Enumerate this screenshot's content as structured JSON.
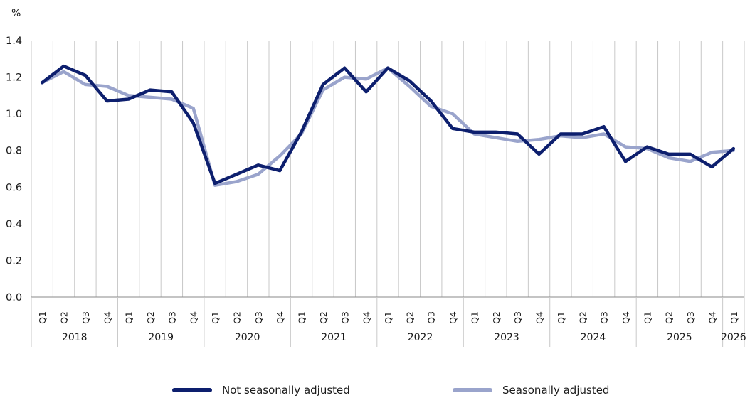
{
  "chart_data": {
    "type": "line",
    "ylabel": "%",
    "ylim": [
      0,
      1.4
    ],
    "yticks": [
      "0.0",
      "0.2",
      "0.4",
      "0.6",
      "0.8",
      "1.0",
      "1.2",
      "1.4"
    ],
    "grid": {
      "vertical": true,
      "horizontal": false
    },
    "legend_position": "bottom",
    "quarters": [
      "Q1",
      "Q2",
      "Q3",
      "Q4",
      "Q1",
      "Q2",
      "Q3",
      "Q4",
      "Q1",
      "Q2",
      "Q3",
      "Q4",
      "Q1",
      "Q2",
      "Q3",
      "Q4",
      "Q1",
      "Q2",
      "Q3",
      "Q4",
      "Q1",
      "Q2",
      "Q3",
      "Q4",
      "Q1",
      "Q2",
      "Q3",
      "Q4",
      "Q1",
      "Q2",
      "Q3",
      "Q4",
      "Q1"
    ],
    "years": [
      {
        "label": "2018",
        "start": 0,
        "count": 4
      },
      {
        "label": "2019",
        "start": 4,
        "count": 4
      },
      {
        "label": "2020",
        "start": 8,
        "count": 4
      },
      {
        "label": "2021",
        "start": 12,
        "count": 4
      },
      {
        "label": "2022",
        "start": 16,
        "count": 4
      },
      {
        "label": "2023",
        "start": 20,
        "count": 4
      },
      {
        "label": "2024",
        "start": 24,
        "count": 4
      },
      {
        "label": "2025",
        "start": 28,
        "count": 4
      },
      {
        "label": "2026",
        "start": 32,
        "count": 1
      }
    ],
    "series": [
      {
        "name": "Not seasonally adjusted",
        "color": "#0d1f6e",
        "values": [
          1.17,
          1.26,
          1.21,
          1.07,
          1.08,
          1.13,
          1.12,
          0.95,
          0.62,
          0.67,
          0.72,
          0.69,
          0.9,
          1.16,
          1.25,
          1.12,
          1.25,
          1.18,
          1.07,
          0.92,
          0.9,
          0.9,
          0.89,
          0.78,
          0.89,
          0.89,
          0.93,
          0.74,
          0.82,
          0.78,
          0.78,
          0.71,
          0.81
        ]
      },
      {
        "name": "Seasonally adjusted",
        "color": "#9aa4cc",
        "values": [
          1.17,
          1.23,
          1.16,
          1.15,
          1.1,
          1.09,
          1.08,
          1.03,
          0.61,
          0.63,
          0.67,
          0.77,
          0.89,
          1.13,
          1.2,
          1.19,
          1.25,
          1.15,
          1.04,
          1.0,
          0.89,
          0.87,
          0.85,
          0.86,
          0.88,
          0.87,
          0.89,
          0.82,
          0.81,
          0.76,
          0.74,
          0.79,
          0.8
        ]
      }
    ]
  }
}
